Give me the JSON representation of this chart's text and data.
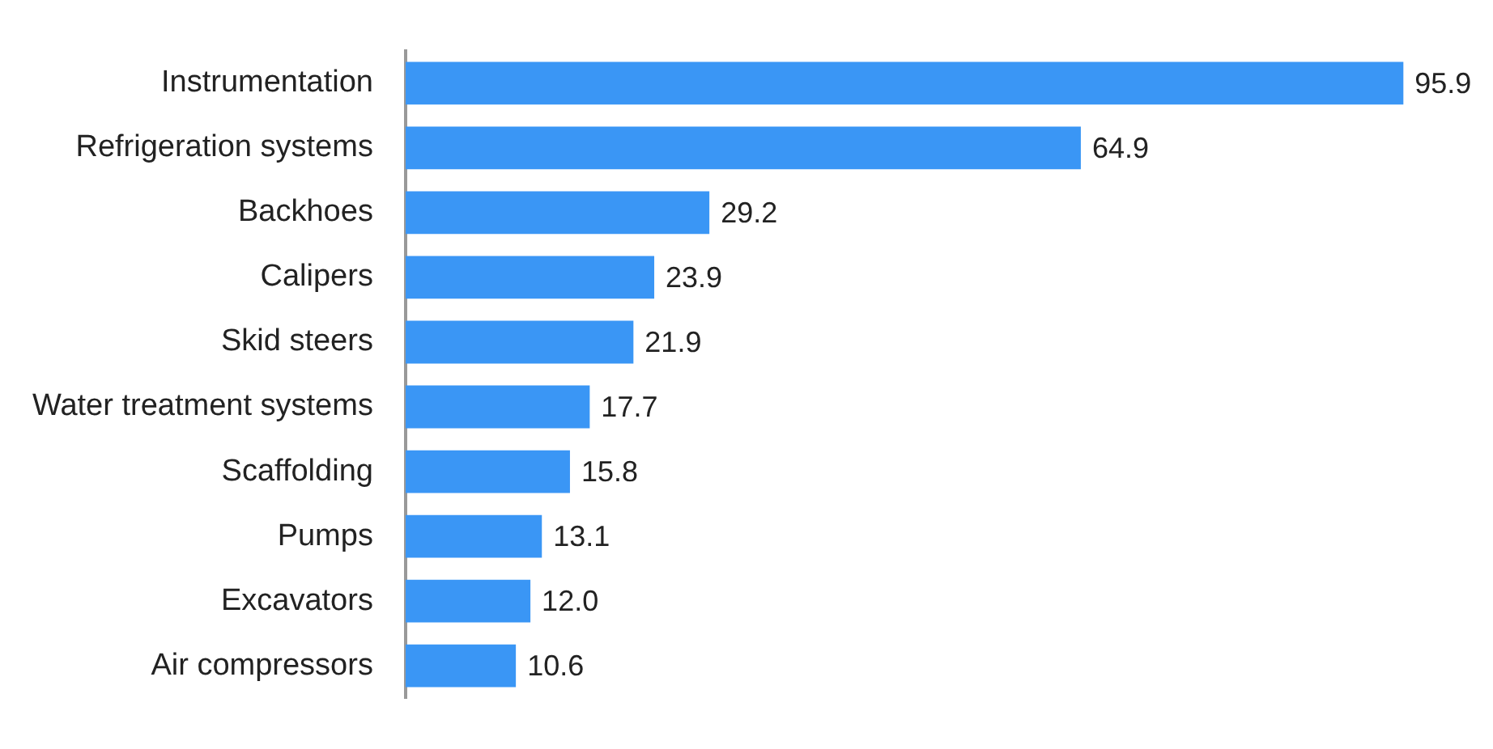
{
  "chart_data": {
    "type": "bar",
    "orientation": "horizontal",
    "categories": [
      "Instrumentation",
      "Refrigeration systems",
      "Backhoes",
      "Calipers",
      "Skid steers",
      "Water treatment systems",
      "Scaffolding",
      "Pumps",
      "Excavators",
      "Air compressors"
    ],
    "values": [
      95.9,
      64.9,
      29.2,
      23.9,
      21.9,
      17.7,
      15.8,
      13.1,
      12.0,
      10.6
    ],
    "value_labels": [
      "95.9",
      "64.9",
      "29.2",
      "23.9",
      "21.9",
      "17.7",
      "15.8",
      "13.1",
      "12.0",
      "10.6"
    ],
    "color": "#3a96f5",
    "tick_labels": "y"
  }
}
